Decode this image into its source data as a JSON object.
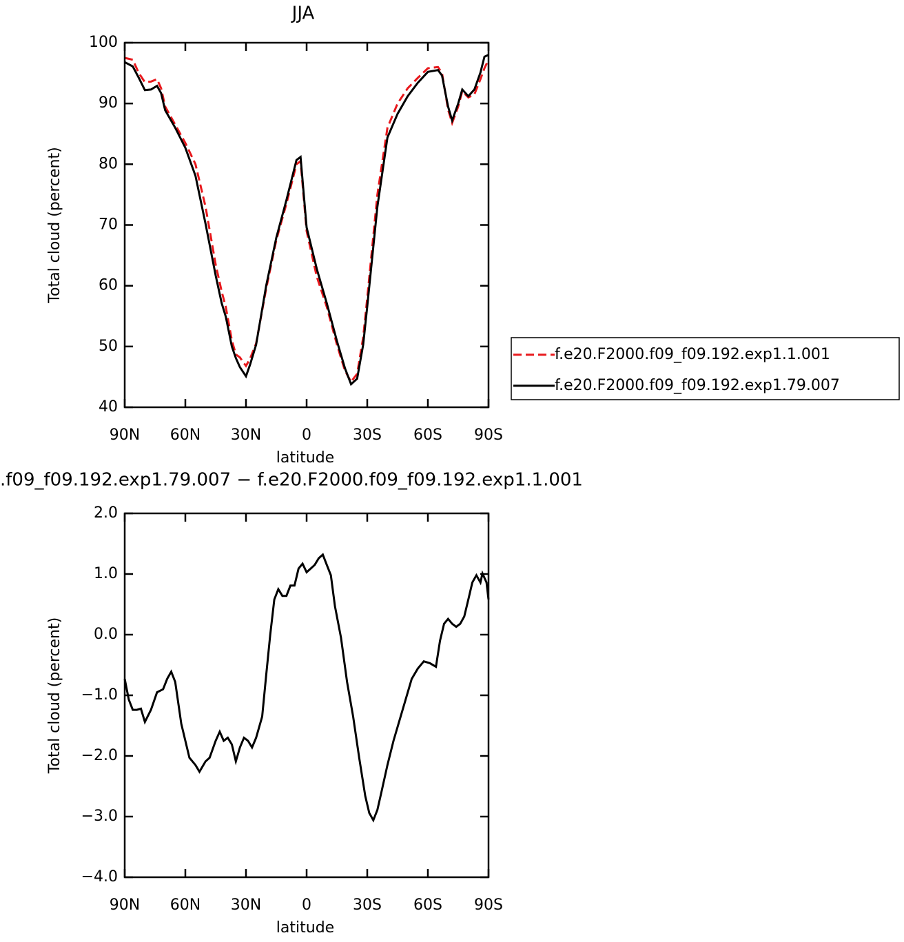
{
  "chart_data": [
    {
      "type": "line",
      "title": "JJA",
      "xlabel": "latitude",
      "ylabel": "Total cloud (percent)",
      "x": [
        90,
        86,
        83,
        80,
        77,
        74,
        72,
        70,
        65,
        60,
        55,
        50,
        45,
        42,
        40,
        37,
        35,
        33,
        30,
        28,
        25,
        20,
        15,
        10,
        5,
        3,
        0,
        -5,
        -10,
        -15,
        -19,
        -22,
        -25,
        -28,
        -30,
        -35,
        -40,
        -45,
        -50,
        -55,
        -60,
        -65,
        -67,
        -70,
        -72,
        -75,
        -77,
        -80,
        -83,
        -86,
        -88,
        -90
      ],
      "series": [
        {
          "name": "f.e20.F2000.f09_f09.192.exp1.1.001",
          "color": "#e8181c",
          "dash": true,
          "values": [
            97.5,
            97.2,
            95,
            93.5,
            93.6,
            94,
            92.5,
            89.5,
            86.5,
            83.5,
            80,
            73,
            63.5,
            59,
            56.5,
            51,
            48.7,
            48.2,
            46.8,
            48,
            50.5,
            59.5,
            67.5,
            73.5,
            80,
            80.5,
            69,
            61.5,
            56.5,
            50.3,
            46,
            44.2,
            45.5,
            51.5,
            58,
            75,
            86,
            90,
            92.5,
            94.2,
            95.8,
            96,
            95,
            89,
            86.8,
            89.5,
            92,
            91,
            91.5,
            94,
            95.8,
            97.2
          ]
        },
        {
          "name": "f.e20.F2000.f09_f09.192.exp1.79.007",
          "color": "#000000",
          "dash": false,
          "values": [
            96.8,
            96.1,
            94.2,
            92.2,
            92.3,
            92.9,
            91.7,
            88.9,
            86,
            82.7,
            78.1,
            70.2,
            61.7,
            57.1,
            54.9,
            50,
            48.1,
            46.6,
            45.1,
            47,
            50.3,
            60,
            67.9,
            74.1,
            80.7,
            81.2,
            69.6,
            62.8,
            57.1,
            50.9,
            46.4,
            43.8,
            44.7,
            50.3,
            56.6,
            73,
            84.4,
            88.3,
            91.2,
            93.4,
            95.2,
            95.5,
            94.6,
            89.5,
            87.2,
            90,
            92.3,
            91.2,
            92.3,
            95.1,
            97.7,
            98
          ]
        }
      ],
      "xlim": [
        90,
        -90
      ],
      "xticks": [
        {
          "value": 90,
          "label": "90N"
        },
        {
          "value": 60,
          "label": "60N"
        },
        {
          "value": 30,
          "label": "30N"
        },
        0,
        {
          "value": -30,
          "label": "30S"
        },
        {
          "value": -60,
          "label": "60S"
        },
        {
          "value": -90,
          "label": "90S"
        }
      ],
      "ylim": [
        40,
        100
      ],
      "yticks": [
        40,
        50,
        60,
        70,
        80,
        90,
        100
      ],
      "legend": "right"
    },
    {
      "type": "line",
      "title": ".f09_f09.192.exp1.79.007 − f.e20.F2000.f09_f09.192.exp1.1.001",
      "xlabel": "latitude",
      "ylabel": "Total cloud (percent)",
      "x": [
        90,
        88,
        86,
        84,
        82,
        80,
        77,
        74,
        71,
        69,
        67,
        65,
        62,
        58,
        55,
        53,
        50,
        48,
        45,
        43,
        41,
        39,
        37,
        35,
        33,
        31,
        29,
        27,
        25,
        22,
        20,
        18,
        16,
        14,
        12,
        10,
        8,
        6,
        4,
        2,
        0,
        -2,
        -4,
        -6,
        -8,
        -10,
        -12,
        -14,
        -17,
        -20,
        -23,
        -26,
        -29,
        -31,
        -33,
        -35,
        -37,
        -40,
        -43,
        -46,
        -49,
        -52,
        -55,
        -58,
        -61,
        -64,
        -66,
        -68,
        -70,
        -72,
        -74,
        -76,
        -78,
        -80,
        -82,
        -84,
        -86,
        -87,
        -89,
        -90
      ],
      "series": [
        {
          "name": null,
          "color": "#000000",
          "dash": false,
          "values": [
            -0.73,
            -1.07,
            -1.24,
            -1.24,
            -1.22,
            -1.44,
            -1.24,
            -0.95,
            -0.9,
            -0.73,
            -0.61,
            -0.78,
            -1.47,
            -2.03,
            -2.15,
            -2.26,
            -2.09,
            -2.03,
            -1.75,
            -1.6,
            -1.75,
            -1.7,
            -1.81,
            -2.09,
            -1.86,
            -1.7,
            -1.75,
            -1.86,
            -1.7,
            -1.35,
            -0.67,
            0,
            0.58,
            0.75,
            0.64,
            0.64,
            0.81,
            0.81,
            1.09,
            1.17,
            1.03,
            1.09,
            1.15,
            1.26,
            1.32,
            1.15,
            0.98,
            0.47,
            -0.05,
            -0.78,
            -1.35,
            -2.03,
            -2.66,
            -2.94,
            -3.06,
            -2.89,
            -2.6,
            -2.15,
            -1.75,
            -1.41,
            -1.07,
            -0.73,
            -0.56,
            -0.44,
            -0.47,
            -0.53,
            -0.1,
            0.18,
            0.26,
            0.18,
            0.13,
            0.18,
            0.3,
            0.58,
            0.86,
            0.98,
            0.86,
            1.01,
            0.86,
            0.58
          ]
        }
      ],
      "xlim": [
        90,
        -90
      ],
      "xticks": [
        {
          "value": 90,
          "label": "90N"
        },
        {
          "value": 60,
          "label": "60N"
        },
        {
          "value": 30,
          "label": "30N"
        },
        0,
        {
          "value": -30,
          "label": "30S"
        },
        {
          "value": -60,
          "label": "60S"
        },
        {
          "value": -90,
          "label": "90S"
        }
      ],
      "ylim": [
        -4,
        2
      ],
      "yticks": [
        {
          "value": -4,
          "label": "−4.0"
        },
        {
          "value": -3,
          "label": "−3.0"
        },
        {
          "value": -2,
          "label": "−2.0"
        },
        {
          "value": -1,
          "label": "−1.0"
        },
        {
          "value": 0,
          "label": "0.0"
        },
        {
          "value": 1,
          "label": "1.0"
        },
        {
          "value": 2,
          "label": "2.0"
        }
      ]
    }
  ]
}
